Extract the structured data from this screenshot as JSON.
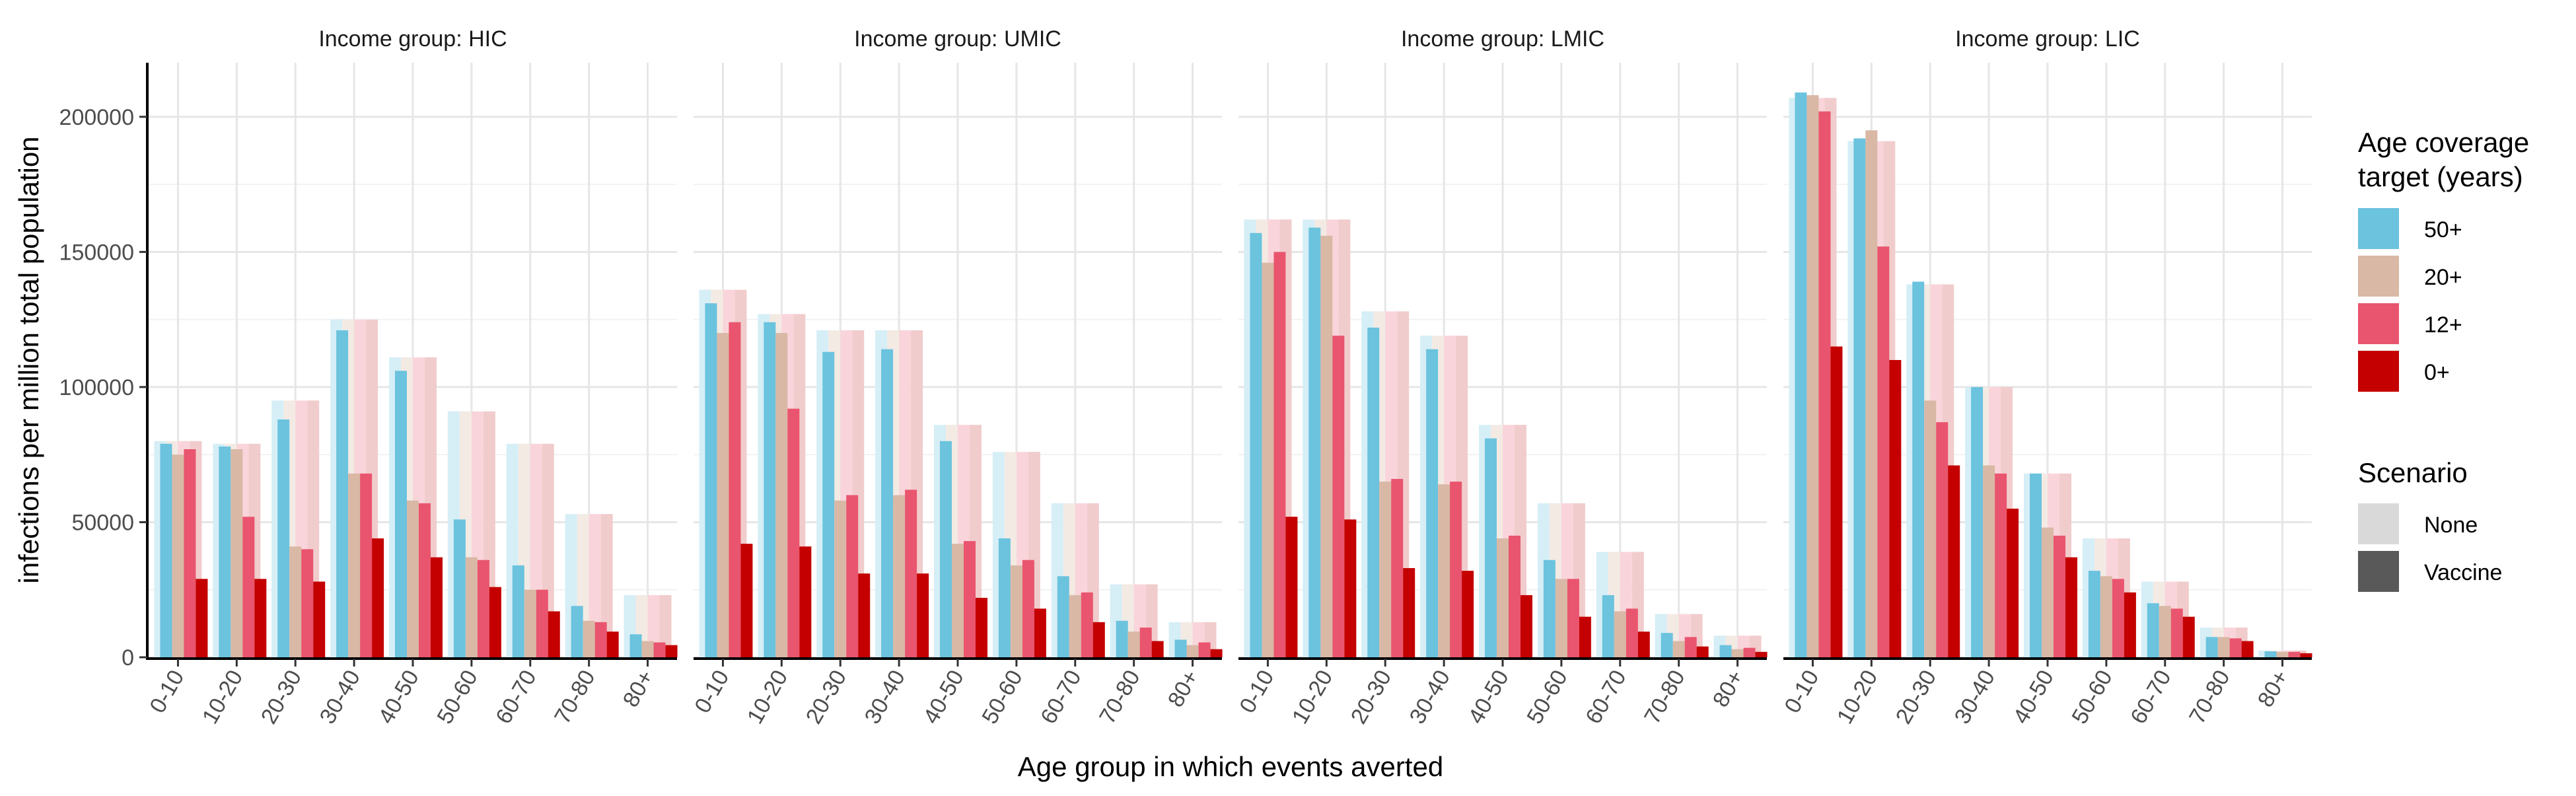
{
  "chart_data": {
    "type": "bar",
    "ylabel": "infections per million total population",
    "xlabel": "Age group in which events averted",
    "ylim": [
      0,
      220000
    ],
    "yticks": [
      0,
      50000,
      100000,
      150000,
      200000
    ],
    "categories": [
      "0-10",
      "10-20",
      "20-30",
      "30-40",
      "40-50",
      "50-60",
      "60-70",
      "70-80",
      "80+"
    ],
    "grid": true,
    "legend_position": "right",
    "facet_prefix": "Income group: ",
    "legend": {
      "coverage_title_line1": "Age coverage",
      "coverage_title_line2": "target (years)",
      "coverage_items": [
        {
          "label": "50+",
          "color": "#6BC3DE"
        },
        {
          "label": "20+",
          "color": "#D9B8A6"
        },
        {
          "label": "12+",
          "color": "#E9556E"
        },
        {
          "label": "0+",
          "color": "#C40000"
        }
      ],
      "scenario_title": "Scenario",
      "scenario_items": [
        {
          "label": "None",
          "color": "#D9D9D9"
        },
        {
          "label": "Vaccine",
          "color": "#595959"
        }
      ]
    },
    "colors": {
      "none_50": "#D6EEF6",
      "none_20": "#F3EAE4",
      "none_12": "#F9D5DB",
      "none_0": "#F1CCCC",
      "vaccine_50": "#6BC3DE",
      "vaccine_20": "#D9B8A6",
      "vaccine_12": "#E9556E",
      "vaccine_0": "#C40000"
    },
    "panels": [
      {
        "label": "HIC",
        "none": [
          80000,
          79000,
          95000,
          125000,
          111000,
          91000,
          79000,
          53000,
          23000
        ],
        "vaccine": {
          "50+": [
            79000,
            78000,
            88000,
            121000,
            106000,
            51000,
            34000,
            19000,
            8500
          ],
          "20+": [
            75000,
            77000,
            41000,
            68000,
            58000,
            37000,
            25000,
            13500,
            6000
          ],
          "12+": [
            77000,
            52000,
            40000,
            68000,
            57000,
            36000,
            25000,
            13000,
            5500
          ],
          "0+": [
            29000,
            29000,
            28000,
            44000,
            37000,
            26000,
            17000,
            9500,
            4500
          ]
        }
      },
      {
        "label": "UMIC",
        "none": [
          136000,
          127000,
          121000,
          121000,
          86000,
          76000,
          57000,
          27000,
          13000
        ],
        "vaccine": {
          "50+": [
            131000,
            124000,
            113000,
            114000,
            80000,
            44000,
            30000,
            13500,
            6500
          ],
          "20+": [
            120000,
            120000,
            58000,
            60000,
            42000,
            34000,
            23000,
            9500,
            4500
          ],
          "12+": [
            124000,
            92000,
            60000,
            62000,
            43000,
            36000,
            24000,
            11000,
            5500
          ],
          "0+": [
            42000,
            41000,
            31000,
            31000,
            22000,
            18000,
            13000,
            6000,
            3000
          ]
        }
      },
      {
        "label": "LMIC",
        "none": [
          162000,
          162000,
          128000,
          119000,
          86000,
          57000,
          39000,
          16000,
          8000
        ],
        "vaccine": {
          "50+": [
            157000,
            159000,
            122000,
            114000,
            81000,
            36000,
            23000,
            9000,
            4500
          ],
          "20+": [
            146000,
            156000,
            65000,
            64000,
            44000,
            29000,
            17000,
            6000,
            3000
          ],
          "12+": [
            150000,
            119000,
            66000,
            65000,
            45000,
            29000,
            18000,
            7500,
            3500
          ],
          "0+": [
            52000,
            51000,
            33000,
            32000,
            23000,
            15000,
            9500,
            4000,
            2000
          ]
        }
      },
      {
        "label": "LIC",
        "none": [
          207000,
          191000,
          138000,
          100000,
          68000,
          44000,
          28000,
          11000,
          2500
        ],
        "vaccine": {
          "50+": [
            209000,
            192000,
            139000,
            100000,
            68000,
            32000,
            20000,
            7500,
            2200
          ],
          "20+": [
            208000,
            195000,
            95000,
            71000,
            48000,
            30000,
            19000,
            7500,
            2000
          ],
          "12+": [
            202000,
            152000,
            87000,
            68000,
            45000,
            29000,
            18000,
            7000,
            2000
          ],
          "0+": [
            115000,
            110000,
            71000,
            55000,
            37000,
            24000,
            15000,
            6000,
            1500
          ]
        }
      }
    ]
  }
}
